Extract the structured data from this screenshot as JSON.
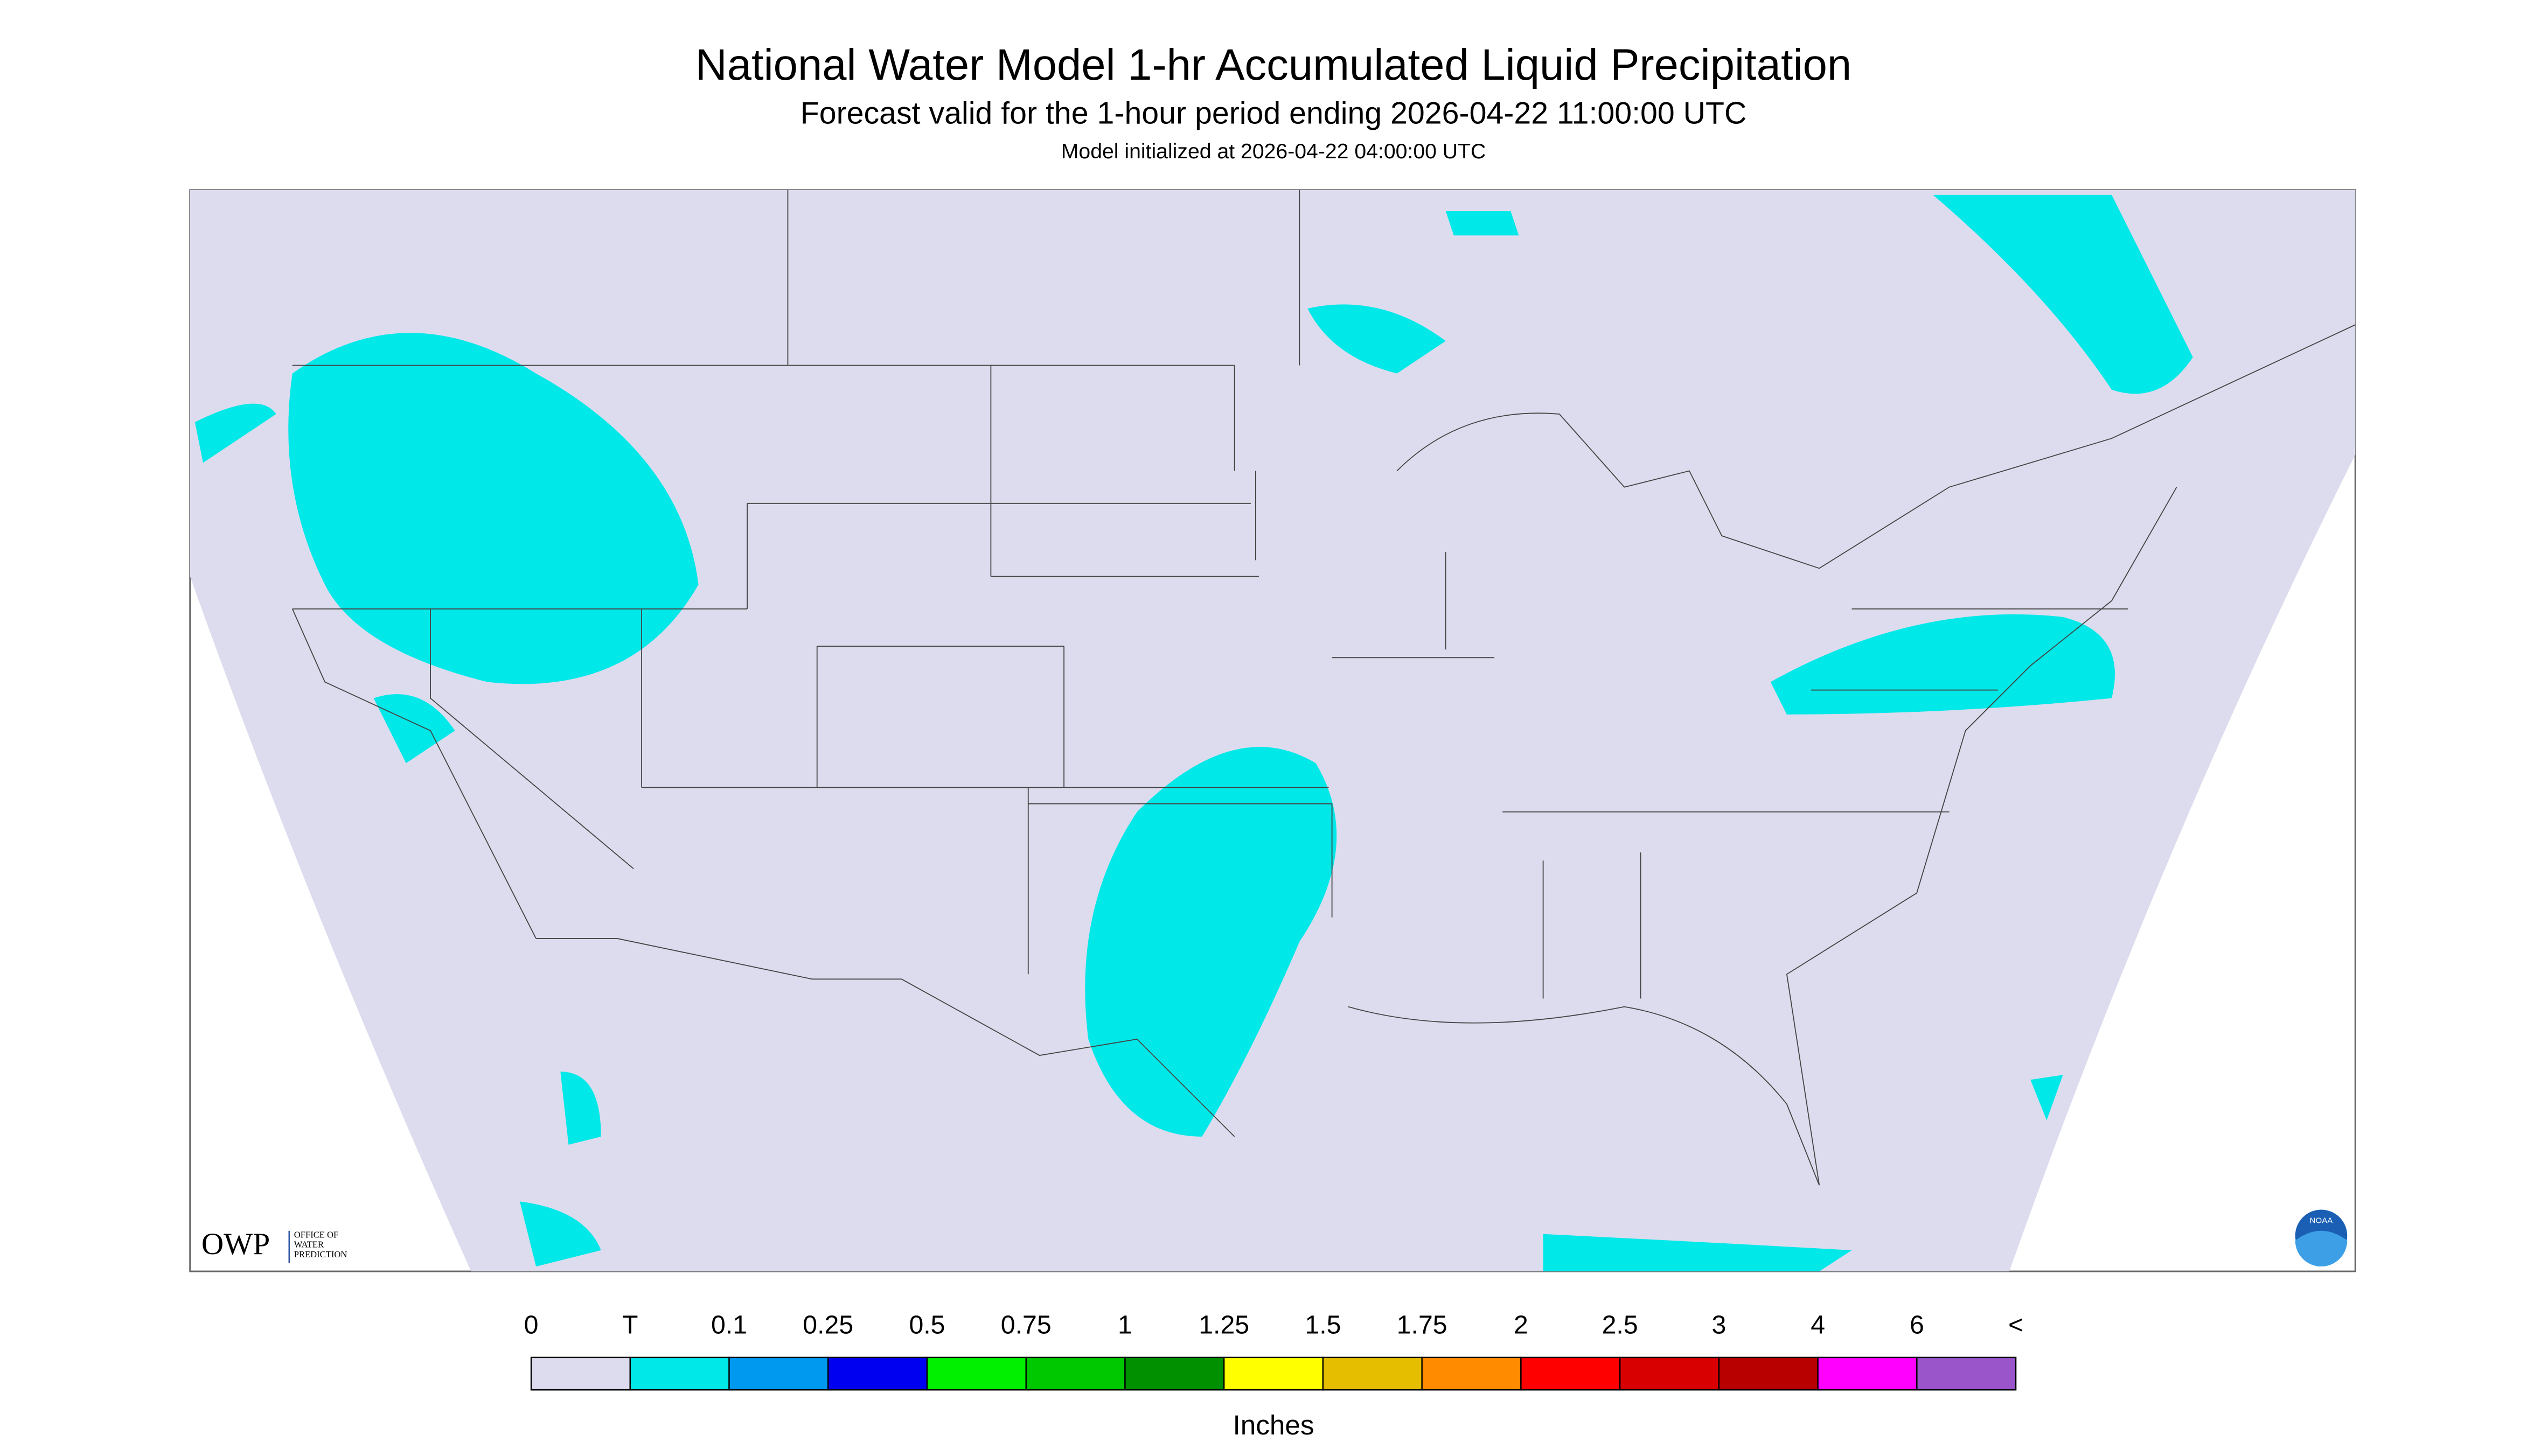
{
  "header": {
    "title": "National Water Model 1-hr Accumulated Liquid Precipitation",
    "subtitle": "Forecast valid for the 1-hour period ending 2026-04-22 11:00:00 UTC",
    "note": "Model initialized at 2026-04-22 04:00:00 UTC"
  },
  "logos": {
    "owp": "OWP",
    "owp_text": [
      "OFFICE OF",
      "WATER",
      "PREDICTION"
    ],
    "noaa": "NOAA"
  },
  "legend": {
    "labels": [
      "0",
      "T",
      "0.1",
      "0.25",
      "0.5",
      "0.75",
      "1",
      "1.25",
      "1.5",
      "1.75",
      "2",
      "2.5",
      "3",
      "4",
      "6",
      "<"
    ],
    "colors": [
      "#dcdcee",
      "#00e8e8",
      "#0099f0",
      "#0000f0",
      "#00f000",
      "#00c800",
      "#009000",
      "#ffff00",
      "#e6be00",
      "#ff8c00",
      "#ff0000",
      "#d80000",
      "#b80000",
      "#ff00ff",
      "#9955c9"
    ],
    "unit": "Inches"
  }
}
